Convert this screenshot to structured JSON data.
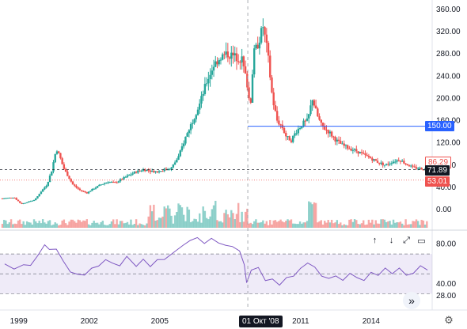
{
  "chart_data": {
    "type": "candlestick",
    "price_axis_labels": [
      "360.00",
      "320.00",
      "280.00",
      "240.00",
      "200.00",
      "160.00",
      "120.00",
      "80.00",
      "40.00",
      "0.00"
    ],
    "rsi_axis_labels": [
      "80.00",
      "40.00",
      "28.00"
    ],
    "time_axis_labels": [
      "1999",
      "2002",
      "2005",
      "2011",
      "2014"
    ],
    "crosshair_time": "01 Окт '08",
    "price_tags": {
      "horizontal_line": "150.00",
      "current_price": "71.89",
      "level_red": "53.01",
      "level_hint": "86.29"
    },
    "horizontal_line_value": 150,
    "current_price_value": 71.89,
    "level_red_value": 53.01,
    "y_range": [
      0,
      360
    ],
    "rsi_range": [
      20,
      90
    ],
    "x_start_year": 1998.2,
    "x_end_year": 2016.6,
    "price_path": [
      [
        1998.3,
        20
      ],
      [
        1998.8,
        22
      ],
      [
        1999.1,
        10
      ],
      [
        1999.4,
        14
      ],
      [
        1999.7,
        18
      ],
      [
        1999.9,
        30
      ],
      [
        2000.2,
        45
      ],
      [
        2000.4,
        70
      ],
      [
        2000.6,
        110
      ],
      [
        2000.75,
        95
      ],
      [
        2000.9,
        75
      ],
      [
        2001.1,
        60
      ],
      [
        2001.3,
        45
      ],
      [
        2001.6,
        35
      ],
      [
        2001.9,
        30
      ],
      [
        2002.2,
        38
      ],
      [
        2002.5,
        45
      ],
      [
        2002.8,
        50
      ],
      [
        2003.1,
        48
      ],
      [
        2003.4,
        55
      ],
      [
        2003.7,
        62
      ],
      [
        2004.0,
        68
      ],
      [
        2004.3,
        72
      ],
      [
        2004.6,
        70
      ],
      [
        2004.9,
        68
      ],
      [
        2005.2,
        72
      ],
      [
        2005.5,
        75
      ],
      [
        2005.8,
        95
      ],
      [
        2006.1,
        130
      ],
      [
        2006.4,
        160
      ],
      [
        2006.7,
        190
      ],
      [
        2007.0,
        230
      ],
      [
        2007.3,
        260
      ],
      [
        2007.6,
        275
      ],
      [
        2007.9,
        280
      ],
      [
        2008.2,
        275
      ],
      [
        2008.5,
        270
      ],
      [
        2008.75,
        220
      ],
      [
        2008.85,
        180
      ],
      [
        2009.0,
        280
      ],
      [
        2009.2,
        300
      ],
      [
        2009.4,
        330
      ],
      [
        2009.6,
        280
      ],
      [
        2009.8,
        200
      ],
      [
        2010.0,
        160
      ],
      [
        2010.2,
        150
      ],
      [
        2010.4,
        130
      ],
      [
        2010.6,
        125
      ],
      [
        2010.8,
        140
      ],
      [
        2011.1,
        155
      ],
      [
        2011.3,
        160
      ],
      [
        2011.5,
        200
      ],
      [
        2011.7,
        170
      ],
      [
        2011.9,
        150
      ],
      [
        2012.2,
        140
      ],
      [
        2012.5,
        125
      ],
      [
        2012.8,
        115
      ],
      [
        2013.1,
        110
      ],
      [
        2013.4,
        105
      ],
      [
        2013.7,
        98
      ],
      [
        2014.0,
        92
      ],
      [
        2014.3,
        85
      ],
      [
        2014.6,
        80
      ],
      [
        2014.9,
        86
      ],
      [
        2015.2,
        90
      ],
      [
        2015.5,
        82
      ],
      [
        2015.8,
        75
      ],
      [
        2016.1,
        74
      ],
      [
        2016.4,
        72
      ]
    ],
    "rsi_path": [
      [
        1998.4,
        63
      ],
      [
        1998.8,
        55
      ],
      [
        1999.2,
        60
      ],
      [
        1999.5,
        58
      ],
      [
        1999.8,
        70
      ],
      [
        2000.1,
        78
      ],
      [
        2000.3,
        72
      ],
      [
        2000.6,
        75
      ],
      [
        2000.9,
        65
      ],
      [
        2001.2,
        52
      ],
      [
        2001.5,
        48
      ],
      [
        2001.8,
        46
      ],
      [
        2002.1,
        55
      ],
      [
        2002.4,
        58
      ],
      [
        2002.7,
        63
      ],
      [
        2003.0,
        59
      ],
      [
        2003.3,
        61
      ],
      [
        2003.6,
        66
      ],
      [
        2004.0,
        58
      ],
      [
        2004.3,
        63
      ],
      [
        2004.6,
        57
      ],
      [
        2004.9,
        62
      ],
      [
        2005.2,
        66
      ],
      [
        2005.6,
        72
      ],
      [
        2006.0,
        78
      ],
      [
        2006.3,
        82
      ],
      [
        2006.6,
        84
      ],
      [
        2006.9,
        83
      ],
      [
        2007.2,
        84
      ],
      [
        2007.5,
        82
      ],
      [
        2007.8,
        78
      ],
      [
        2008.1,
        76
      ],
      [
        2008.4,
        75
      ],
      [
        2008.6,
        58
      ],
      [
        2008.7,
        44
      ],
      [
        2008.9,
        52
      ],
      [
        2009.2,
        55
      ],
      [
        2009.5,
        46
      ],
      [
        2009.8,
        44
      ],
      [
        2010.1,
        41
      ],
      [
        2010.4,
        48
      ],
      [
        2010.7,
        50
      ],
      [
        2011.0,
        57
      ],
      [
        2011.3,
        58
      ],
      [
        2011.6,
        56
      ],
      [
        2011.9,
        47
      ],
      [
        2012.2,
        44
      ],
      [
        2012.5,
        47
      ],
      [
        2012.8,
        43
      ],
      [
        2013.1,
        48
      ],
      [
        2013.4,
        46
      ],
      [
        2013.7,
        43
      ],
      [
        2014.0,
        49
      ],
      [
        2014.3,
        47
      ],
      [
        2014.6,
        53
      ],
      [
        2014.9,
        52
      ],
      [
        2015.2,
        55
      ],
      [
        2015.5,
        50
      ],
      [
        2015.8,
        53
      ],
      [
        2016.1,
        57
      ],
      [
        2016.4,
        52
      ]
    ]
  },
  "controls": {
    "up_icon": "↑",
    "down_icon": "↓",
    "expand_icon": "⤢",
    "maximize_icon": "▭",
    "goto_icon": "»",
    "settings_icon": "⚙"
  },
  "colors": {
    "up": "#26a69a",
    "down": "#ef5350",
    "rsi_line": "#7e57c2",
    "rsi_band": "rgba(126,87,194,0.12)",
    "hline": "#2962ff"
  }
}
